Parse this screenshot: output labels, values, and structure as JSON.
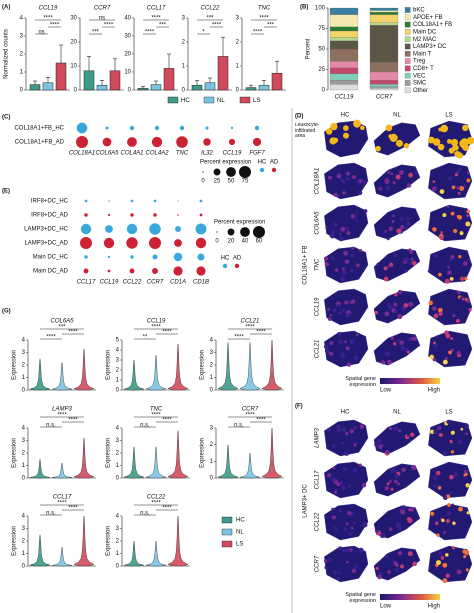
{
  "panel_labels": [
    "(A)",
    "(B)",
    "(C)",
    "(D)",
    "(E)",
    "(F)",
    "(G)"
  ],
  "group_legend": {
    "names": [
      "HC",
      "NL",
      "LS"
    ],
    "colors": [
      "#3c9a8a",
      "#7cc3e3",
      "#cf4a5c"
    ]
  },
  "chart_data": [
    {
      "type": "bar",
      "title": "CCL19",
      "ylabel": "Normalized counts",
      "values": [
        0.3,
        0.4,
        1.5
      ],
      "errors": [
        0.2,
        0.3,
        1.0
      ],
      "ylim": [
        0,
        4
      ],
      "yticks": [
        0,
        1,
        2,
        3,
        4
      ],
      "annotations": [
        "****",
        "ns",
        "****"
      ]
    },
    {
      "type": "bar",
      "title": "CCR7",
      "values": [
        8,
        2,
        8
      ],
      "errors": [
        6,
        2,
        5
      ],
      "ylim": [
        0,
        30
      ],
      "yticks": [
        0,
        10,
        20,
        30
      ],
      "annotations": [
        "ns",
        "***",
        "****"
      ]
    },
    {
      "type": "bar",
      "title": "CCL17",
      "values": [
        1,
        3,
        12
      ],
      "errors": [
        1,
        2,
        8
      ],
      "ylim": [
        0,
        40
      ],
      "yticks": [
        0,
        10,
        20,
        30,
        40
      ],
      "annotations": [
        "****",
        "****",
        "***"
      ]
    },
    {
      "type": "bar",
      "title": "CCL22",
      "values": [
        0.2,
        0.3,
        1.4
      ],
      "errors": [
        0.2,
        0.2,
        0.8
      ],
      "ylim": [
        0,
        3
      ],
      "yticks": [
        0,
        1,
        2,
        3
      ],
      "annotations": [
        "***",
        "*",
        "****"
      ]
    },
    {
      "type": "bar",
      "title": "TNC",
      "values": [
        0.1,
        0.2,
        0.7
      ],
      "errors": [
        0.1,
        0.2,
        0.5
      ],
      "ylim": [
        0,
        3
      ],
      "yticks": [
        0,
        1,
        2,
        3
      ],
      "annotations": [
        "****",
        "****",
        "***"
      ]
    },
    {
      "type": "stacked_bar",
      "ylabel": "Percent",
      "categories": [
        "CCL19",
        "CCR7"
      ],
      "ylim": [
        0,
        100
      ],
      "yticks": [
        0,
        25,
        50,
        75,
        100
      ],
      "series": [
        {
          "name": "bKC",
          "color": "#3b7ea1",
          "values": [
            8,
            3
          ]
        },
        {
          "name": "APOE+ FB",
          "color": "#f2e8b0",
          "values": [
            15,
            2
          ]
        },
        {
          "name": "COL18A1+ FB",
          "color": "#2e7d32",
          "values": [
            5,
            3
          ]
        },
        {
          "name": "Main DC",
          "color": "#f3d36a",
          "values": [
            8,
            10
          ]
        },
        {
          "name": "M2 MAC",
          "color": "#b5d98a",
          "values": [
            4,
            3
          ]
        },
        {
          "name": "LAMP3+ DC",
          "color": "#5c5648",
          "values": [
            10,
            45
          ]
        },
        {
          "name": "Main T",
          "color": "#8d7060",
          "values": [
            15,
            12
          ]
        },
        {
          "name": "Treg",
          "color": "#e58aa6",
          "values": [
            8,
            10
          ]
        },
        {
          "name": "CD8+ T",
          "color": "#c4486a",
          "values": [
            7,
            5
          ]
        },
        {
          "name": "VEC",
          "color": "#7fcdbb",
          "values": [
            8,
            3
          ]
        },
        {
          "name": "SMC",
          "color": "#9a9a9a",
          "values": [
            5,
            2
          ]
        },
        {
          "name": "Other",
          "color": "#dddddd",
          "values": [
            7,
            2
          ]
        }
      ]
    },
    {
      "type": "dot",
      "rows": [
        "COL18A1+FB_HC",
        "COL18A1+FB_AD"
      ],
      "columns": [
        "COL18A1",
        "COL6A5",
        "COL4A1",
        "COL4A2",
        "TNC",
        "IL32",
        "CCL19",
        "FGF7"
      ],
      "values": [
        [
          60,
          5,
          10,
          10,
          10,
          5,
          3,
          10
        ],
        [
          75,
          40,
          50,
          55,
          70,
          30,
          20,
          35
        ]
      ],
      "row_colors": [
        "#39a9dc",
        "#cc2233"
      ],
      "size_legend": {
        "title": "Percent expression",
        "sizes": [
          0,
          25,
          50,
          75
        ]
      },
      "color_legend": {
        "names": [
          "HC",
          "AD"
        ],
        "colors": [
          "#39a9dc",
          "#cc2233"
        ]
      }
    },
    {
      "type": "dot",
      "rows": [
        "IRF8+DC_HC",
        "IRF8+DC_AD",
        "LAMP3+DC_HC",
        "LAMP3+DC_AD",
        "Main DC_HC",
        "Main DC_AD"
      ],
      "columns": [
        "CCL17",
        "CCL19",
        "CCL22",
        "CCR7",
        "CD1A",
        "CD1B"
      ],
      "values": [
        [
          3,
          1,
          3,
          3,
          0,
          3
        ],
        [
          5,
          2,
          5,
          5,
          1,
          3
        ],
        [
          45,
          25,
          45,
          55,
          15,
          50
        ],
        [
          60,
          45,
          55,
          60,
          25,
          45
        ],
        [
          5,
          2,
          5,
          10,
          30,
          20
        ],
        [
          10,
          3,
          10,
          15,
          35,
          35
        ]
      ],
      "row_colors": [
        "#39a9dc",
        "#cc2233",
        "#39a9dc",
        "#cc2233",
        "#39a9dc",
        "#cc2233"
      ],
      "size_legend": {
        "title": "Percent expression",
        "sizes": [
          0,
          20,
          40,
          60
        ]
      },
      "color_legend": {
        "names": [
          "HC",
          "AD"
        ],
        "colors": [
          "#39a9dc",
          "#cc2233"
        ]
      }
    },
    {
      "type": "violin",
      "title": "COL6A5",
      "ylabel": "Expression",
      "values": [
        2.5,
        2.2,
        3.3
      ],
      "ylim": [
        0,
        4
      ],
      "yticks": [
        0,
        1,
        2,
        3,
        4
      ],
      "annotations": [
        "***",
        "****",
        "****"
      ]
    },
    {
      "type": "violin",
      "title": "CCL19",
      "ylabel": "Expression",
      "values": [
        3,
        3.5,
        4.6
      ],
      "ylim": [
        0,
        5
      ],
      "yticks": [
        0,
        1,
        2,
        3,
        4,
        5
      ],
      "annotations": [
        "****",
        "**",
        "****"
      ]
    },
    {
      "type": "violin",
      "title": "CCL21",
      "ylabel": "Expression",
      "values": [
        3.8,
        3.8,
        4
      ],
      "ylim": [
        0,
        4
      ],
      "yticks": [
        0,
        1,
        2,
        3,
        4
      ],
      "annotations": [
        "****",
        "****",
        "****"
      ]
    },
    {
      "type": "violin",
      "title": "LAMP3",
      "ylabel": "Expression",
      "values": [
        1.5,
        1.2,
        3.2
      ],
      "ylim": [
        0,
        4
      ],
      "yticks": [
        0,
        1,
        2,
        3,
        4
      ],
      "annotations": [
        "****",
        "n.s.",
        "****"
      ]
    },
    {
      "type": "violin",
      "title": "TNC",
      "ylabel": "Expression",
      "values": [
        2.5,
        2.5,
        3.8
      ],
      "ylim": [
        0,
        4
      ],
      "yticks": [
        0,
        1,
        2,
        3,
        4
      ],
      "annotations": [
        "****",
        "n.s.",
        "****"
      ]
    },
    {
      "type": "violin",
      "title": "CCR7",
      "ylabel": "Expression",
      "values": [
        2,
        1.5,
        3
      ],
      "ylim": [
        0,
        3
      ],
      "yticks": [
        0,
        1,
        2,
        3
      ],
      "annotations": [
        "****",
        "n.s.",
        "****"
      ]
    },
    {
      "type": "violin",
      "title": "CCL17",
      "ylabel": "Expression",
      "values": [
        2.5,
        1.5,
        4
      ],
      "ylim": [
        0,
        4
      ],
      "yticks": [
        0,
        1,
        2,
        3,
        4
      ],
      "annotations": [
        "****",
        "n.s.",
        "****"
      ]
    },
    {
      "type": "violin",
      "title": "CCL22",
      "ylabel": "Expression",
      "values": [
        2,
        2,
        4
      ],
      "ylim": [
        0,
        4
      ],
      "yticks": [
        0,
        1,
        2,
        3,
        4
      ],
      "annotations": [
        "****",
        "n.s.",
        "****"
      ]
    }
  ],
  "spatial_D": {
    "columns": [
      "HC",
      "NL",
      "LS"
    ],
    "area_label": "Leukocyte-infiltrated area",
    "rows": [
      "COL18A1",
      "COL6A5",
      "TNC",
      "CCL19",
      "CCL21"
    ],
    "group_label": "COL18A1+ FB",
    "colorbar": {
      "title": "Spatial gene expression",
      "low": "Low",
      "high": "High"
    }
  },
  "spatial_F": {
    "columns": [
      "HC",
      "NL",
      "LS"
    ],
    "rows": [
      "LAMP3",
      "CCL17",
      "CCL22",
      "CCR7"
    ],
    "group_label": "LAMP3+ DC",
    "colorbar": {
      "title": "Spatial gene expression",
      "low": "Low",
      "high": "High"
    }
  }
}
